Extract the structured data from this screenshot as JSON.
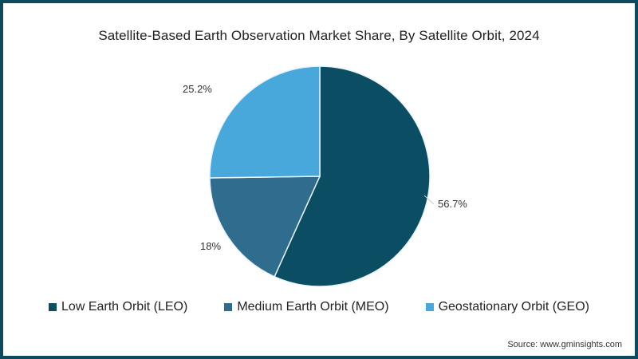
{
  "chart_data": {
    "type": "pie",
    "title": "Satellite-Based Earth Observation Market Share, By Satellite Orbit, 2024",
    "categories": [
      "Low Earth Orbit (LEO)",
      "Medium Earth Orbit (MEO)",
      "Geostationary Orbit (GEO)"
    ],
    "values": [
      56.7,
      18,
      25.2
    ],
    "labels": [
      "56.7%",
      "18%",
      "25.2%"
    ],
    "colors": [
      "#0b4d63",
      "#2f6c8e",
      "#48a8dc"
    ],
    "legend_position": "bottom",
    "start_angle": "12 o'clock, clockwise"
  },
  "title": "Satellite-Based Earth Observation Market Share, By Satellite Orbit, 2024",
  "legend": [
    {
      "label": "Low Earth Orbit (LEO)",
      "color": "#0b4d63"
    },
    {
      "label": "Medium Earth Orbit (MEO)",
      "color": "#2f6c8e"
    },
    {
      "label": "Geostationary Orbit (GEO)",
      "color": "#48a8dc"
    }
  ],
  "slice_labels": {
    "leo": "56.7%",
    "meo": "18%",
    "geo": "25.2%"
  },
  "source": "Source: www.gminsights.com",
  "frame_color": "#0d4a5e"
}
